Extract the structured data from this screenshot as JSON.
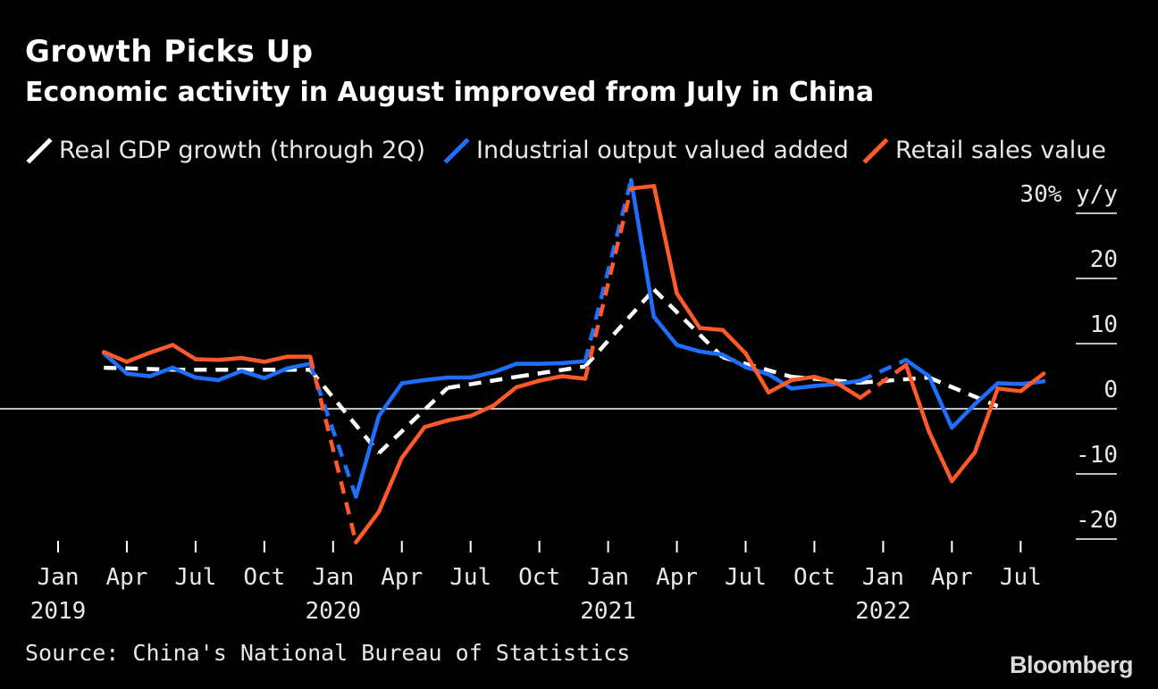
{
  "chart_data": {
    "type": "line",
    "title": "Growth Picks Up",
    "subtitle": "Economic activity in August improved from July in China",
    "unit_label": "30% y/y",
    "ylim": [
      -20,
      30
    ],
    "y_ticks": [
      {
        "value": 30,
        "label": "30% y/y"
      },
      {
        "value": 20,
        "label": "20"
      },
      {
        "value": 10,
        "label": "10"
      },
      {
        "value": 0,
        "label": "0"
      },
      {
        "value": -10,
        "label": "-10"
      },
      {
        "value": -20,
        "label": "-20"
      }
    ],
    "x_ticks": [
      {
        "month": 0,
        "label": "Jan",
        "year": "2019"
      },
      {
        "month": 3,
        "label": "Apr",
        "year": ""
      },
      {
        "month": 6,
        "label": "Jul",
        "year": ""
      },
      {
        "month": 9,
        "label": "Oct",
        "year": ""
      },
      {
        "month": 12,
        "label": "Jan",
        "year": "2020"
      },
      {
        "month": 15,
        "label": "Apr",
        "year": ""
      },
      {
        "month": 18,
        "label": "Jul",
        "year": ""
      },
      {
        "month": 21,
        "label": "Oct",
        "year": ""
      },
      {
        "month": 24,
        "label": "Jan",
        "year": "2021"
      },
      {
        "month": 27,
        "label": "Apr",
        "year": ""
      },
      {
        "month": 30,
        "label": "Jul",
        "year": ""
      },
      {
        "month": 33,
        "label": "Oct",
        "year": ""
      },
      {
        "month": 36,
        "label": "Jan",
        "year": "2022"
      },
      {
        "month": 39,
        "label": "Apr",
        "year": ""
      },
      {
        "month": 42,
        "label": "Jul",
        "year": ""
      }
    ],
    "series": [
      {
        "name": "Real GDP growth (through 2Q)",
        "color": "#ffffff",
        "style": "dashed",
        "points": [
          [
            2,
            6.3
          ],
          [
            5,
            6.0
          ],
          [
            8,
            6.0
          ],
          [
            11,
            6.0
          ],
          [
            14,
            -6.8
          ],
          [
            17,
            3.2
          ],
          [
            20,
            4.9
          ],
          [
            23,
            6.5
          ],
          [
            26,
            18.3
          ],
          [
            29,
            7.9
          ],
          [
            32,
            4.9
          ],
          [
            35,
            4.0
          ],
          [
            38,
            4.8
          ],
          [
            41,
            0.4
          ]
        ]
      },
      {
        "name": "Industrial output valued added",
        "color": "#1f6fff",
        "style": "solid",
        "points": [
          [
            2,
            8.5
          ],
          [
            3,
            5.4
          ],
          [
            4,
            5.0
          ],
          [
            5,
            6.3
          ],
          [
            6,
            4.8
          ],
          [
            7,
            4.4
          ],
          [
            8,
            5.8
          ],
          [
            9,
            4.7
          ],
          [
            10,
            6.2
          ],
          [
            11,
            6.9
          ],
          [
            13,
            -13.5
          ],
          [
            14,
            -1.1
          ],
          [
            15,
            3.9
          ],
          [
            16,
            4.4
          ],
          [
            17,
            4.8
          ],
          [
            18,
            4.8
          ],
          [
            19,
            5.6
          ],
          [
            20,
            6.9
          ],
          [
            21,
            6.9
          ],
          [
            22,
            7.0
          ],
          [
            23,
            7.3
          ],
          [
            25,
            35.1
          ],
          [
            26,
            14.1
          ],
          [
            27,
            9.8
          ],
          [
            28,
            8.8
          ],
          [
            29,
            8.3
          ],
          [
            30,
            6.4
          ],
          [
            31,
            5.3
          ],
          [
            32,
            3.1
          ],
          [
            33,
            3.5
          ],
          [
            34,
            3.8
          ],
          [
            35,
            4.3
          ],
          [
            37,
            7.5
          ],
          [
            38,
            5.0
          ],
          [
            39,
            -2.9
          ],
          [
            40,
            0.7
          ],
          [
            41,
            3.9
          ],
          [
            42,
            3.8
          ],
          [
            43,
            4.2
          ]
        ]
      },
      {
        "name": "Retail sales value",
        "color": "#ff5a27",
        "style": "solid",
        "points": [
          [
            2,
            8.7
          ],
          [
            3,
            7.2
          ],
          [
            4,
            8.6
          ],
          [
            5,
            9.8
          ],
          [
            6,
            7.6
          ],
          [
            7,
            7.5
          ],
          [
            8,
            7.8
          ],
          [
            9,
            7.2
          ],
          [
            10,
            8.0
          ],
          [
            11,
            8.0
          ],
          [
            13,
            -20.5
          ],
          [
            14,
            -15.8
          ],
          [
            15,
            -7.5
          ],
          [
            16,
            -2.8
          ],
          [
            17,
            -1.8
          ],
          [
            18,
            -1.1
          ],
          [
            19,
            0.5
          ],
          [
            20,
            3.3
          ],
          [
            21,
            4.3
          ],
          [
            22,
            5.0
          ],
          [
            23,
            4.6
          ],
          [
            25,
            33.8
          ],
          [
            26,
            34.2
          ],
          [
            27,
            17.7
          ],
          [
            28,
            12.4
          ],
          [
            29,
            12.1
          ],
          [
            30,
            8.5
          ],
          [
            31,
            2.5
          ],
          [
            32,
            4.4
          ],
          [
            33,
            4.9
          ],
          [
            34,
            3.9
          ],
          [
            35,
            1.7
          ],
          [
            37,
            6.7
          ],
          [
            38,
            -3.5
          ],
          [
            39,
            -11.1
          ],
          [
            40,
            -6.7
          ],
          [
            41,
            3.1
          ],
          [
            42,
            2.7
          ],
          [
            43,
            5.4
          ]
        ]
      }
    ]
  }
}
